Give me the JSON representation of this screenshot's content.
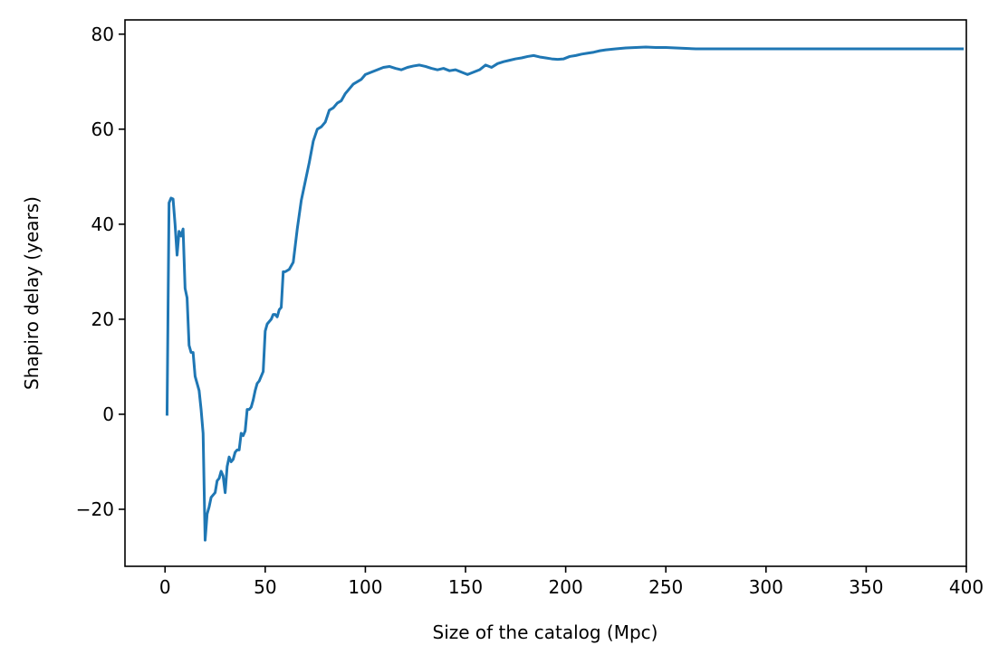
{
  "chart_data": {
    "type": "line",
    "title": "",
    "xlabel": "Size of the catalog (Mpc)",
    "ylabel": "Shapiro delay (years)",
    "xlim": [
      -20,
      400
    ],
    "ylim": [
      -32,
      83
    ],
    "xticks": [
      0,
      50,
      100,
      150,
      200,
      250,
      300,
      350,
      400
    ],
    "xtick_labels": [
      "0",
      "50",
      "100",
      "150",
      "200",
      "250",
      "300",
      "350",
      "400"
    ],
    "yticks": [
      -20,
      0,
      20,
      40,
      60,
      80
    ],
    "ytick_labels": [
      "−20",
      "0",
      "20",
      "40",
      "60",
      "80"
    ],
    "grid": false,
    "legend": "none",
    "series": [
      {
        "color": "#1f77b4",
        "x": [
          1,
          2,
          3,
          4,
          5,
          6,
          7,
          8,
          9,
          10,
          11,
          12,
          13,
          14,
          15,
          16,
          17,
          18,
          19,
          20,
          21,
          22,
          23,
          24,
          25,
          26,
          27,
          28,
          29,
          30,
          31,
          32,
          33,
          34,
          35,
          36,
          37,
          38,
          39,
          40,
          41,
          42,
          43,
          44,
          45,
          46,
          47,
          48,
          49,
          50,
          51,
          52,
          53,
          54,
          55,
          56,
          57,
          58,
          59,
          60,
          62,
          64,
          66,
          68,
          70,
          72,
          74,
          76,
          78,
          80,
          82,
          84,
          86,
          88,
          90,
          92,
          94,
          96,
          98,
          100,
          103,
          106,
          109,
          112,
          115,
          118,
          121,
          124,
          127,
          130,
          133,
          136,
          139,
          142,
          145,
          148,
          151,
          154,
          157,
          160,
          163,
          166,
          169,
          172,
          175,
          178,
          181,
          184,
          187,
          190,
          193,
          196,
          199,
          202,
          205,
          208,
          211,
          214,
          217,
          220,
          225,
          230,
          235,
          240,
          245,
          250,
          255,
          260,
          265,
          270,
          280,
          290,
          300,
          320,
          340,
          360,
          380,
          398
        ],
        "y": [
          0,
          44.5,
          45.5,
          45.3,
          40,
          33.5,
          38.5,
          37.5,
          39,
          26.5,
          24.5,
          14.5,
          13,
          13,
          8,
          6.5,
          5,
          1,
          -4,
          -26.5,
          -21,
          -19.5,
          -17.5,
          -17,
          -16.5,
          -14,
          -13.5,
          -12,
          -13,
          -16.5,
          -11,
          -9,
          -10,
          -9.5,
          -8,
          -7.5,
          -7.5,
          -4,
          -4.5,
          -3.5,
          1,
          1,
          1.5,
          3,
          5,
          6.5,
          7,
          8,
          9,
          17.5,
          19,
          19.5,
          20,
          21,
          21,
          20.5,
          22,
          22.5,
          30,
          30,
          30.5,
          32,
          39,
          45,
          49,
          53,
          57.5,
          60,
          60.5,
          61.5,
          64,
          64.5,
          65.5,
          66,
          67.5,
          68.5,
          69.5,
          70,
          70.5,
          71.5,
          72,
          72.5,
          73,
          73.2,
          72.8,
          72.5,
          73,
          73.3,
          73.5,
          73.2,
          72.8,
          72.5,
          72.8,
          72.3,
          72.5,
          72,
          71.5,
          72,
          72.5,
          73.5,
          73,
          73.8,
          74.2,
          74.5,
          74.8,
          75,
          75.3,
          75.5,
          75.2,
          75,
          74.8,
          74.7,
          74.8,
          75.3,
          75.5,
          75.8,
          76,
          76.2,
          76.5,
          76.7,
          76.9,
          77.1,
          77.2,
          77.3,
          77.2,
          77.2,
          77.1,
          77,
          76.9,
          76.9,
          76.9,
          76.9,
          76.9,
          76.9,
          76.9,
          76.9,
          76.9,
          76.9
        ]
      }
    ]
  }
}
